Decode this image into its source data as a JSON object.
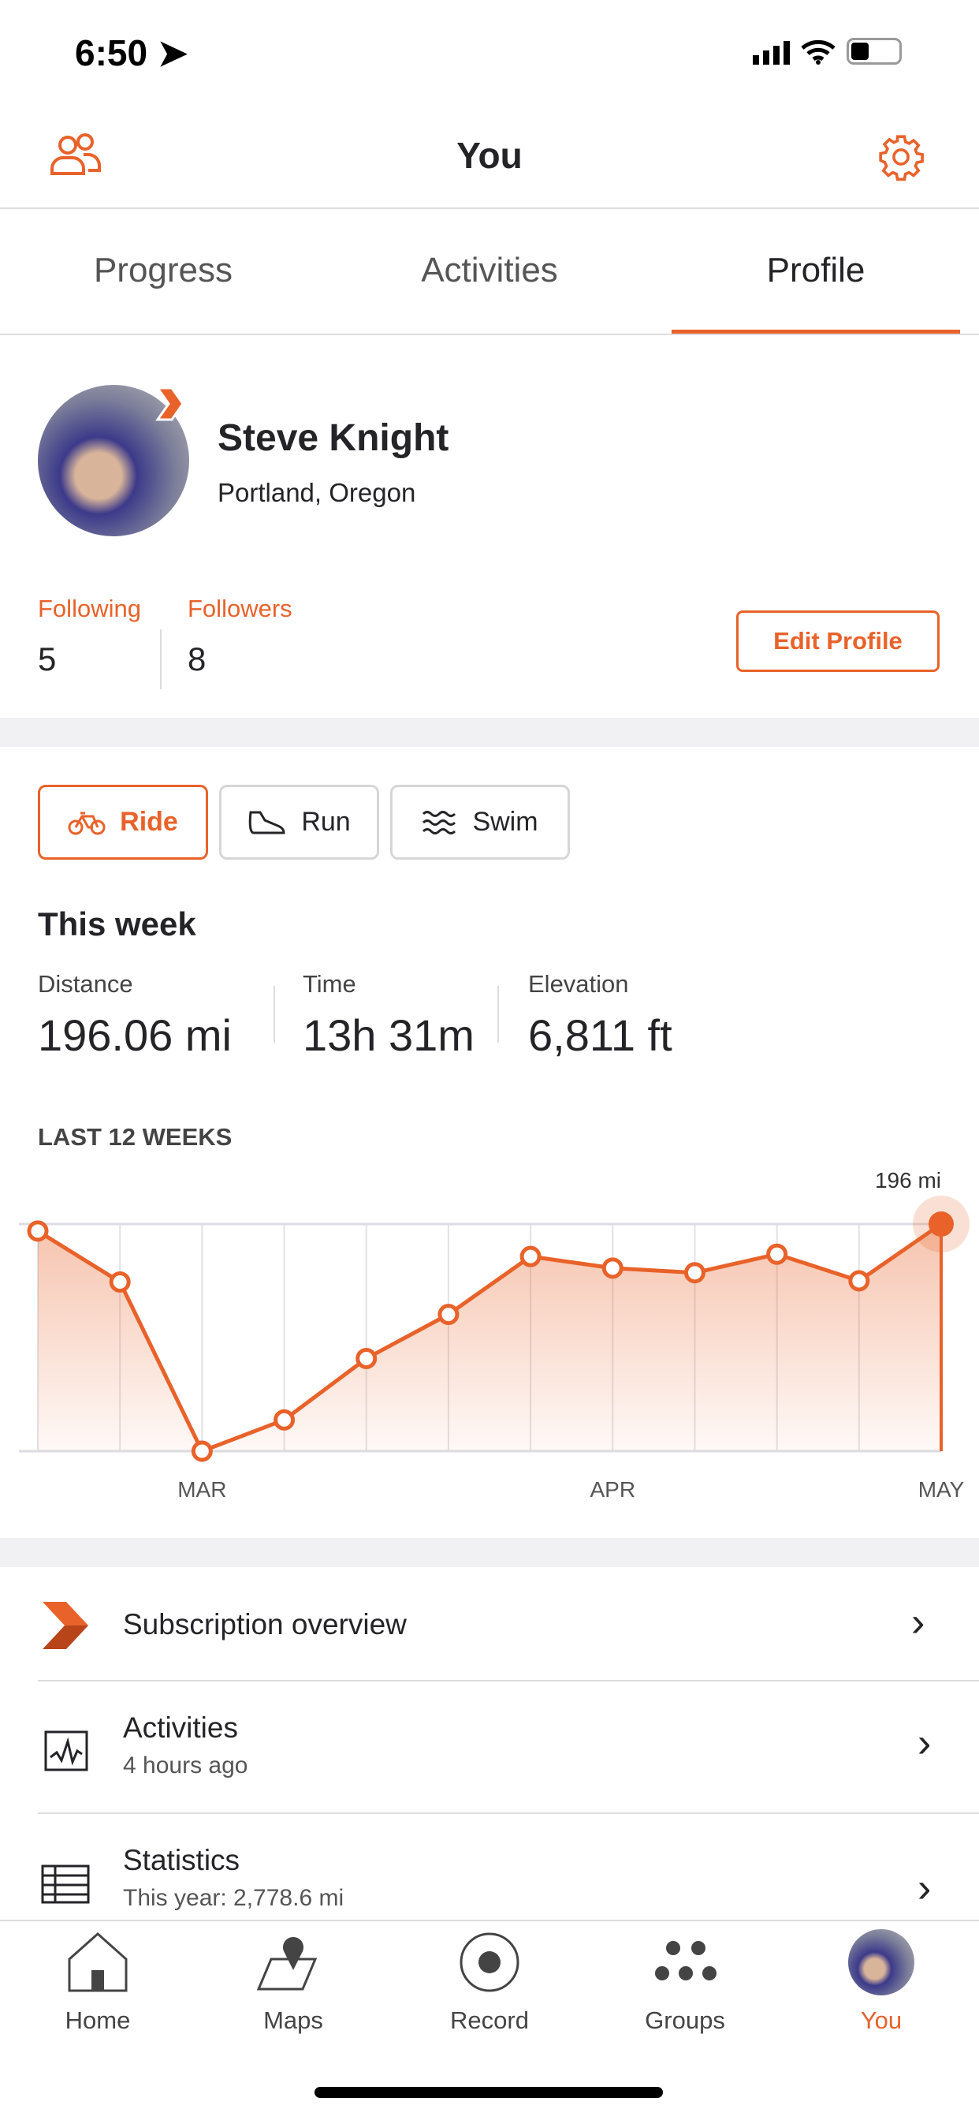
{
  "status_bar": {
    "time": "6:50"
  },
  "header": {
    "title": "You",
    "left_icon": "friends-icon",
    "right_icon": "gear-icon"
  },
  "tabs": [
    {
      "label": "Progress"
    },
    {
      "label": "Activities"
    },
    {
      "label": "Profile",
      "active": true
    }
  ],
  "profile": {
    "name": "Steve Knight",
    "location": "Portland, Oregon",
    "following_label": "Following",
    "following": "5",
    "followers_label": "Followers",
    "followers": "8",
    "edit_label": "Edit Profile"
  },
  "sports": [
    {
      "label": "Ride",
      "icon": "bike-icon",
      "selected": true
    },
    {
      "label": "Run",
      "icon": "shoe-icon"
    },
    {
      "label": "Swim",
      "icon": "waves-icon"
    }
  ],
  "week": {
    "title": "This week",
    "stats": [
      {
        "label": "Distance",
        "value": "196.06 mi"
      },
      {
        "label": "Time",
        "value": "13h 31m"
      },
      {
        "label": "Elevation",
        "value": "6,811 ft"
      }
    ]
  },
  "chart_data": {
    "type": "area",
    "title": "LAST 12 WEEKS",
    "x_labels": [
      "MAR",
      "APR",
      "MAY"
    ],
    "values": [
      190,
      146,
      0,
      27,
      80,
      118,
      168,
      158,
      154,
      170,
      147,
      196
    ],
    "ylim": [
      0,
      196
    ],
    "highlight_label": "196 mi",
    "accent": "#e8622a",
    "grid": "vertical"
  },
  "menu": [
    {
      "title": "Subscription overview",
      "icon": "subscription-chevron-icon"
    },
    {
      "title": "Activities",
      "subtitle": "4 hours ago",
      "icon": "activity-chart-icon"
    },
    {
      "title": "Statistics",
      "subtitle": "This year: 2,778.6 mi",
      "icon": "table-icon"
    }
  ],
  "nav": [
    {
      "label": "Home"
    },
    {
      "label": "Maps"
    },
    {
      "label": "Record"
    },
    {
      "label": "Groups"
    },
    {
      "label": "You",
      "active": true
    }
  ],
  "colors": {
    "accent": "#e8622a"
  }
}
